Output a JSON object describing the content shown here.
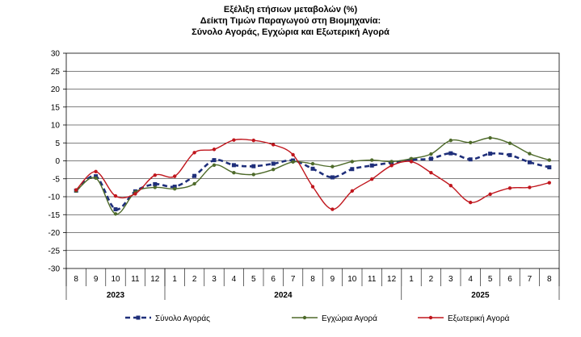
{
  "chart_data": {
    "type": "line",
    "title_lines": [
      "Εξέλιξη ετήσιων μεταβολών (%)",
      "Δείκτη Τιμών Παραγωγού στη Βιομηχανία:",
      "Σύνολο Αγοράς, Εγχώρια και Εξωτερική Αγορά"
    ],
    "ylim": [
      -30,
      30
    ],
    "yticks": [
      "30",
      "25",
      "20",
      "15",
      "10",
      "5",
      "0",
      "-5",
      "-10",
      "-15",
      "-20",
      "-25",
      "-30"
    ],
    "ytick_values": [
      30,
      25,
      20,
      15,
      10,
      5,
      0,
      -5,
      -10,
      -15,
      -20,
      -25,
      -30
    ],
    "months": [
      "8",
      "9",
      "10",
      "11",
      "12",
      "1",
      "2",
      "3",
      "4",
      "5",
      "6",
      "7",
      "8",
      "9",
      "10",
      "11",
      "12",
      "1",
      "2",
      "3",
      "4",
      "5",
      "6",
      "7",
      "8"
    ],
    "years": [
      {
        "label": "2023",
        "start": 0,
        "end": 4
      },
      {
        "label": "2024",
        "start": 5,
        "end": 16
      },
      {
        "label": "2025",
        "start": 17,
        "end": 24
      }
    ],
    "series": [
      {
        "name": "Σύνολο Αγοράς",
        "color": "#1f2f7a",
        "style": "dashed",
        "values": [
          -8.3,
          -4.3,
          -13.5,
          -8.5,
          -6.5,
          -7.2,
          -4.2,
          0.2,
          -1.2,
          -1.5,
          -0.8,
          0.1,
          -2.2,
          -4.6,
          -2.3,
          -1.3,
          -0.5,
          0.3,
          0.6,
          2.1,
          0.4,
          2.0,
          1.6,
          -0.4,
          -1.8
        ]
      },
      {
        "name": "Εγχώρια Αγορά",
        "color": "#4e6a2a",
        "style": "solid",
        "values": [
          -8.4,
          -4.8,
          -14.8,
          -8.7,
          -7.4,
          -7.8,
          -6.4,
          -1.2,
          -3.3,
          -3.8,
          -2.4,
          -0.3,
          -0.8,
          -1.6,
          -0.2,
          0.2,
          -0.2,
          0.6,
          1.9,
          5.7,
          5.1,
          6.4,
          4.9,
          2.0,
          0.2
        ]
      },
      {
        "name": "Εξωτερική Αγορά",
        "color": "#c0161d",
        "style": "solid",
        "values": [
          -8.1,
          -3.0,
          -9.8,
          -9.2,
          -4.0,
          -4.3,
          2.3,
          3.2,
          5.8,
          5.7,
          4.5,
          1.7,
          -7.2,
          -13.5,
          -8.4,
          -5.1,
          -1.3,
          -0.2,
          -3.3,
          -6.9,
          -11.6,
          -9.3,
          -7.6,
          -7.4,
          -6.1
        ]
      }
    ]
  }
}
